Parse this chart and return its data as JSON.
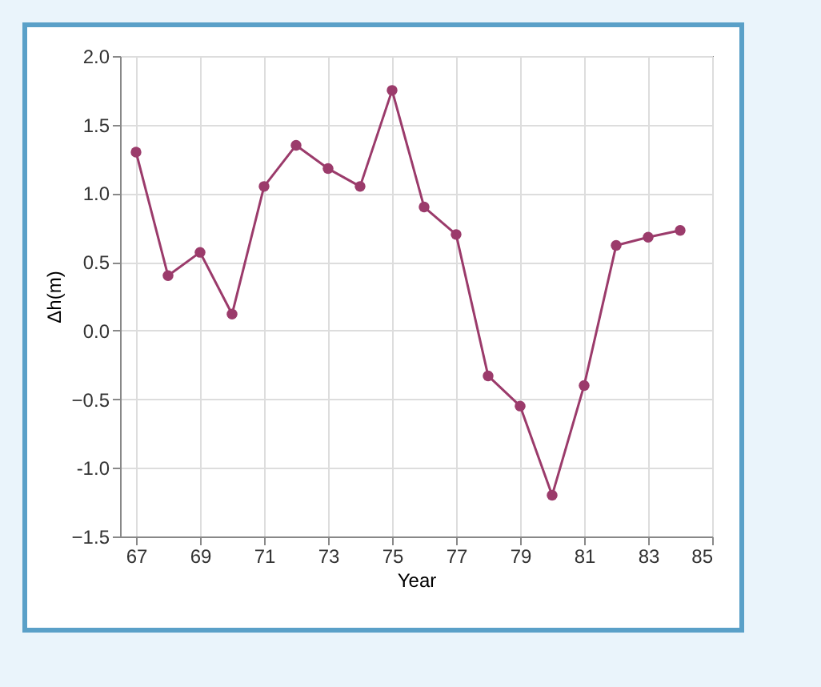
{
  "chart_data": {
    "type": "line",
    "xlabel": "Year",
    "ylabel": "Δh(m)",
    "x": [
      67,
      68,
      69,
      70,
      71,
      72,
      73,
      74,
      75,
      76,
      77,
      78,
      79,
      80,
      81,
      82,
      83,
      84
    ],
    "series": [
      {
        "color": "#9b3b6b",
        "values": [
          1.3,
          0.4,
          0.57,
          0.12,
          1.05,
          1.35,
          1.18,
          1.05,
          1.75,
          0.9,
          0.7,
          -0.33,
          -0.55,
          -1.2,
          -0.4,
          0.62,
          0.68,
          0.73
        ]
      }
    ],
    "xlim": [
      66.5,
      85
    ],
    "xticks": [
      67,
      69,
      71,
      73,
      75,
      77,
      79,
      81,
      83,
      85
    ],
    "ylim": [
      -1.5,
      2
    ],
    "yticks": [
      -1.5,
      {
        "value": -1,
        "label": "-1.0"
      },
      -0.5,
      {
        "value": 0,
        "label": "0.0"
      },
      0.5,
      {
        "value": 1,
        "label": "1.0"
      },
      1.5,
      {
        "value": 2,
        "label": "2.0"
      }
    ],
    "grid": true,
    "marker": "circle",
    "line_style": "solid"
  }
}
